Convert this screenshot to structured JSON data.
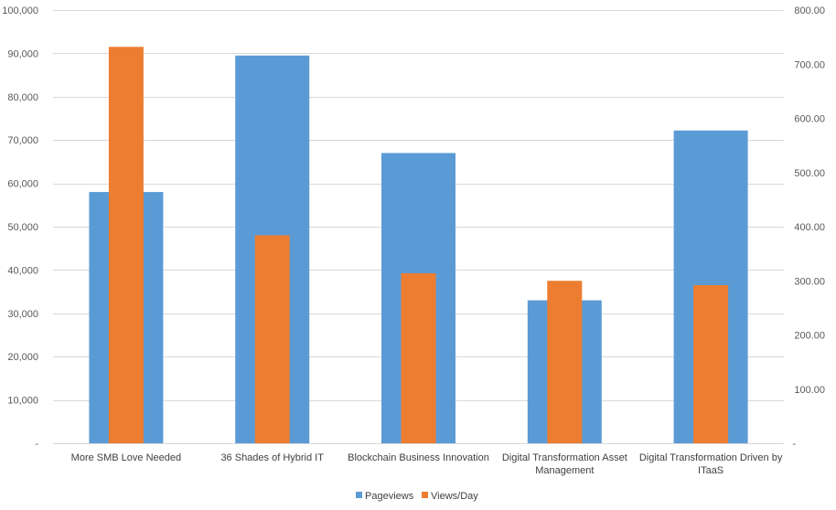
{
  "chart_data": {
    "type": "bar",
    "categories": [
      [
        "More SMB Love Needed"
      ],
      [
        "36 Shades of Hybrid IT"
      ],
      [
        "Blockchain Business Innovation"
      ],
      [
        "Digital Transformation Asset",
        "Management"
      ],
      [
        "Digital Transformation Driven by",
        "ITaaS"
      ]
    ],
    "series": [
      {
        "name": "Pageviews",
        "axis": "left",
        "color": "#5B9BD5",
        "values": [
          58000,
          89500,
          67000,
          33000,
          72200
        ]
      },
      {
        "name": "Views/Day",
        "axis": "right",
        "color": "#ED7D31",
        "values": [
          732,
          384,
          314,
          300,
          292
        ]
      }
    ],
    "y_left": {
      "min": 0,
      "max": 100000,
      "step": 10000,
      "ticks": [
        "-",
        "10,000",
        "20,000",
        "30,000",
        "40,000",
        "50,000",
        "60,000",
        "70,000",
        "80,000",
        "90,000",
        "100,000"
      ]
    },
    "y_right": {
      "min": 0,
      "max": 800,
      "step": 100,
      "ticks": [
        "-",
        "100.00",
        "200.00",
        "300.00",
        "400.00",
        "500.00",
        "600.00",
        "700.00",
        "800.00"
      ]
    },
    "grid": true,
    "legend_position": "bottom",
    "gridline_color": "#d9d9d9"
  }
}
